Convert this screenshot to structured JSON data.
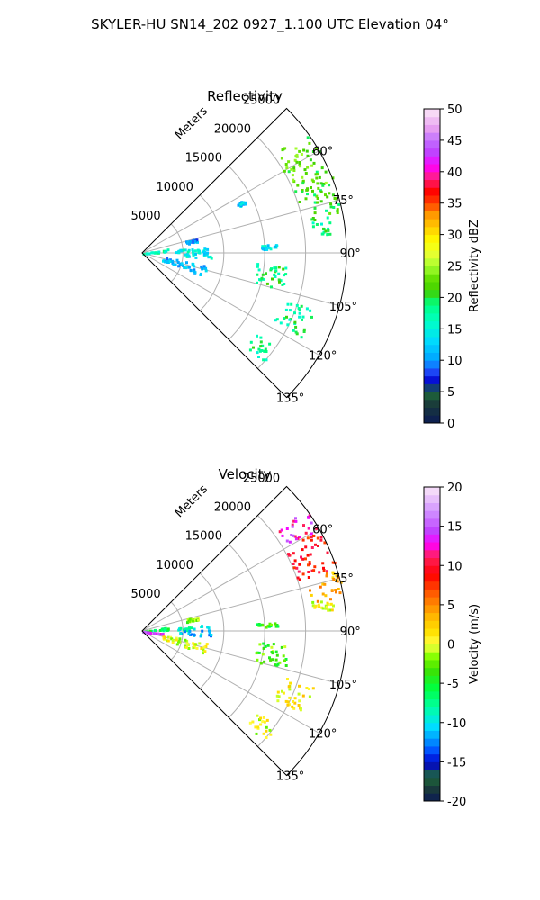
{
  "figure": {
    "suptitle": "SKYLER-HU  SN14_202  0927_1.100 UTC Elevation 04°"
  },
  "chart_data": [
    {
      "type": "heatmap",
      "subtype": "polar-sector-radar-ppi",
      "title": "Reflectivity",
      "radial_label": "Meters",
      "radial_range": [
        0,
        25000
      ],
      "radial_ticks": [
        "5000",
        "10000",
        "15000",
        "20000",
        "25000"
      ],
      "angle_range_deg": [
        45,
        135
      ],
      "angle_ticks": [
        "60°",
        "75°",
        "90°",
        "105°",
        "120°",
        "135°"
      ],
      "grid": true,
      "colorbar": {
        "label": "Reflectivity dBZ",
        "range": [
          0,
          50
        ],
        "ticks": [
          "0",
          "5",
          "10",
          "15",
          "20",
          "25",
          "30",
          "35",
          "40",
          "45",
          "50"
        ]
      },
      "echoes": [
        {
          "az": [
            53,
            72
          ],
          "r": [
            20000,
            25000
          ],
          "value": 22
        },
        {
          "az": [
            72,
            78
          ],
          "r": [
            21500,
            25000
          ],
          "value": 21
        },
        {
          "az": [
            78,
            84
          ],
          "r": [
            21000,
            23500
          ],
          "value": 18
        },
        {
          "az": [
            84,
            88
          ],
          "r": [
            4000,
            8200
          ],
          "value": 15
        },
        {
          "az": [
            88,
            94
          ],
          "r": [
            4500,
            8500
          ],
          "value": 14
        },
        {
          "az": [
            80,
            86
          ],
          "r": [
            0,
            3200
          ],
          "value": 17
        },
        {
          "az": [
            100,
            110
          ],
          "r": [
            2500,
            8000
          ],
          "value": 11
        },
        {
          "az": [
            74,
            78
          ],
          "r": [
            5500,
            7000
          ],
          "value": 10
        },
        {
          "az": [
            95,
            105
          ],
          "r": [
            14000,
            18000
          ],
          "value": 19
        },
        {
          "az": [
            108,
            118
          ],
          "r": [
            18000,
            22000
          ],
          "value": 18
        },
        {
          "az": [
            125,
            132
          ],
          "r": [
            17000,
            20000
          ],
          "value": 18
        },
        {
          "az": [
            86,
            88
          ],
          "r": [
            14000,
            16500
          ],
          "value": 14
        },
        {
          "az": [
            62,
            64
          ],
          "r": [
            13000,
            14000
          ],
          "value": 12
        }
      ]
    },
    {
      "type": "heatmap",
      "subtype": "polar-sector-radar-ppi",
      "title": "Velocity",
      "radial_label": "Meters",
      "radial_range": [
        0,
        25000
      ],
      "radial_ticks": [
        "5000",
        "10000",
        "15000",
        "20000",
        "25000"
      ],
      "angle_range_deg": [
        45,
        135
      ],
      "angle_ticks": [
        "60°",
        "75°",
        "90°",
        "105°",
        "120°",
        "135°"
      ],
      "grid": true,
      "colorbar": {
        "label": "Velocity (m/s)",
        "range": [
          -20,
          20
        ],
        "ticks": [
          "-20",
          "-15",
          "-10",
          "-5",
          "0",
          "5",
          "10",
          "15",
          "20"
        ]
      },
      "echoes": [
        {
          "az": [
            53,
            60
          ],
          "r": [
            20500,
            25000
          ],
          "value": 13
        },
        {
          "az": [
            60,
            72
          ],
          "r": [
            20000,
            25000
          ],
          "value": 9
        },
        {
          "az": [
            72,
            80
          ],
          "r": [
            21000,
            25000
          ],
          "value": 4
        },
        {
          "az": [
            80,
            84
          ],
          "r": [
            21000,
            23500
          ],
          "value": 0
        },
        {
          "az": [
            84,
            88
          ],
          "r": [
            4000,
            8200
          ],
          "value": -9
        },
        {
          "az": [
            88,
            94
          ],
          "r": [
            4500,
            8500
          ],
          "value": -11
        },
        {
          "az": [
            80,
            86
          ],
          "r": [
            0,
            3200
          ],
          "value": -6
        },
        {
          "az": [
            100,
            110
          ],
          "r": [
            2500,
            8000
          ],
          "value": 0
        },
        {
          "az": [
            74,
            78
          ],
          "r": [
            5500,
            7000
          ],
          "value": -2
        },
        {
          "az": [
            95,
            105
          ],
          "r": [
            14000,
            18000
          ],
          "value": -3
        },
        {
          "az": [
            108,
            118
          ],
          "r": [
            18000,
            22000
          ],
          "value": 1
        },
        {
          "az": [
            125,
            132
          ],
          "r": [
            17000,
            20000
          ],
          "value": 0
        },
        {
          "az": [
            86,
            88
          ],
          "r": [
            14000,
            16500
          ],
          "value": -4
        },
        {
          "az": [
            95,
            97
          ],
          "r": [
            0,
            2500
          ],
          "value": 14
        }
      ]
    }
  ]
}
